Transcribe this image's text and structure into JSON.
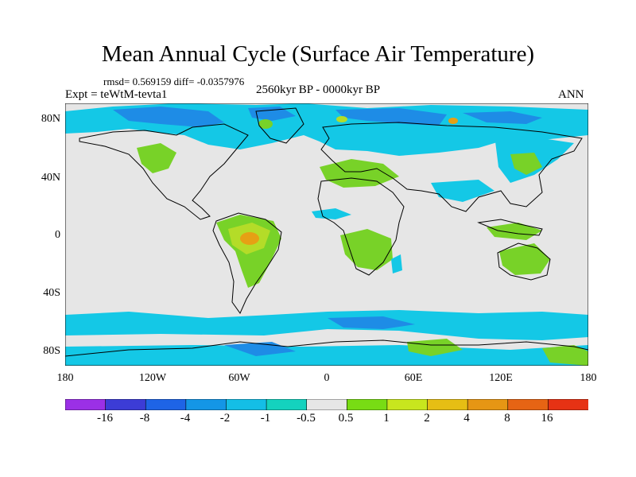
{
  "title": "Mean Annual Cycle (Surface Air Temperature)",
  "stats": "rmsd= 0.569159 diff= -0.0357976",
  "experiment": "Expt = teWtM-tevta1",
  "period": "2560kyr BP - 0000kyr BP",
  "season": "ANN",
  "y_ticks": [
    "80N",
    "40N",
    "0",
    "40S",
    "80S"
  ],
  "x_ticks": [
    "180",
    "120W",
    "60W",
    "0",
    "60E",
    "120E",
    "180"
  ],
  "colorbar": {
    "labels": [
      "-16",
      "-8",
      "-4",
      "-2",
      "-1",
      "-0.5",
      "0.5",
      "1",
      "2",
      "4",
      "8",
      "16"
    ],
    "colors": [
      "#9b30e6",
      "#3c3cd6",
      "#1e64e6",
      "#1496e6",
      "#14bee6",
      "#14d2be",
      "#e6e6e6",
      "#78dc14",
      "#c8e61e",
      "#e6be14",
      "#e69614",
      "#e66414",
      "#e63214"
    ]
  },
  "map_colors": {
    "background": "#e6e6e6",
    "cyan": "#14c8e6",
    "blue": "#1e8ce6",
    "green": "#78d228",
    "yellow_green": "#b4dc28",
    "orange": "#e6a014",
    "coast": "#000000"
  }
}
